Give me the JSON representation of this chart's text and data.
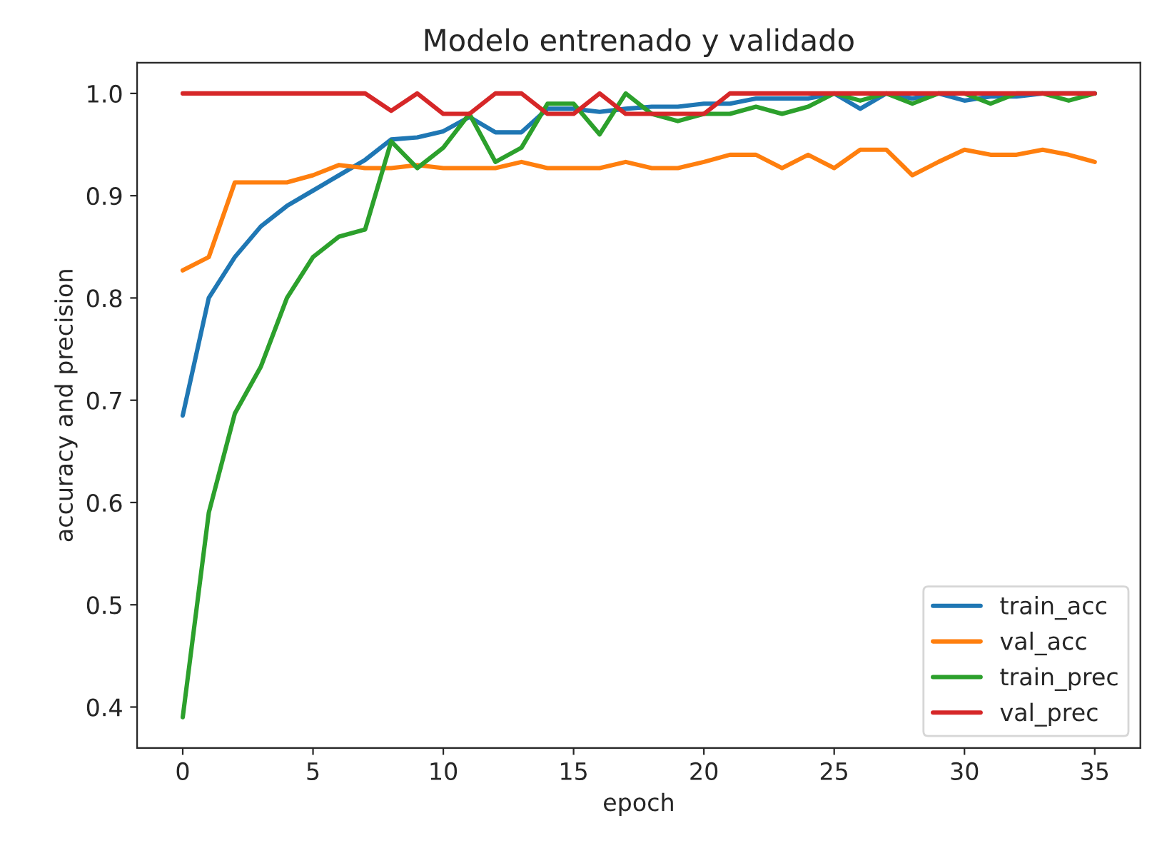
{
  "chart_data": {
    "type": "line",
    "title": "Modelo entrenado y validado",
    "xlabel": "epoch",
    "ylabel": "accuracy and precision",
    "x": [
      0,
      1,
      2,
      3,
      4,
      5,
      6,
      7,
      8,
      9,
      10,
      11,
      12,
      13,
      14,
      15,
      16,
      17,
      18,
      19,
      20,
      21,
      22,
      23,
      24,
      25,
      26,
      27,
      28,
      29,
      30,
      31,
      32,
      33,
      34,
      35
    ],
    "series": [
      {
        "name": "train_acc",
        "color": "#1f77b4",
        "values": [
          0.685,
          0.8,
          0.84,
          0.87,
          0.89,
          0.905,
          0.92,
          0.935,
          0.955,
          0.957,
          0.963,
          0.977,
          0.962,
          0.962,
          0.985,
          0.985,
          0.982,
          0.985,
          0.987,
          0.987,
          0.99,
          0.99,
          0.995,
          0.995,
          0.995,
          1.0,
          0.985,
          1.0,
          0.995,
          1.0,
          0.993,
          0.997,
          0.997,
          1.0,
          1.0,
          1.0
        ]
      },
      {
        "name": "val_acc",
        "color": "#ff7f0e",
        "values": [
          0.827,
          0.84,
          0.913,
          0.913,
          0.913,
          0.92,
          0.93,
          0.927,
          0.927,
          0.93,
          0.927,
          0.927,
          0.927,
          0.933,
          0.927,
          0.927,
          0.927,
          0.933,
          0.927,
          0.927,
          0.933,
          0.94,
          0.94,
          0.927,
          0.94,
          0.927,
          0.945,
          0.945,
          0.92,
          0.933,
          0.945,
          0.94,
          0.94,
          0.945,
          0.94,
          0.933
        ]
      },
      {
        "name": "train_prec",
        "color": "#2ca02c",
        "values": [
          0.39,
          0.59,
          0.687,
          0.733,
          0.8,
          0.84,
          0.86,
          0.867,
          0.953,
          0.927,
          0.947,
          0.98,
          0.933,
          0.947,
          0.99,
          0.99,
          0.96,
          1.0,
          0.98,
          0.973,
          0.98,
          0.98,
          0.987,
          0.98,
          0.987,
          1.0,
          0.993,
          1.0,
          0.99,
          1.0,
          1.0,
          0.99,
          1.0,
          1.0,
          0.993,
          1.0
        ]
      },
      {
        "name": "val_prec",
        "color": "#d62728",
        "values": [
          1.0,
          1.0,
          1.0,
          1.0,
          1.0,
          1.0,
          1.0,
          1.0,
          0.983,
          1.0,
          0.98,
          0.98,
          1.0,
          1.0,
          0.98,
          0.98,
          1.0,
          0.98,
          0.98,
          0.98,
          0.98,
          1.0,
          1.0,
          1.0,
          1.0,
          1.0,
          1.0,
          1.0,
          1.0,
          1.0,
          1.0,
          1.0,
          1.0,
          1.0,
          1.0,
          1.0
        ]
      }
    ],
    "xlim": [
      -1.75,
      36.75
    ],
    "xticks": [
      0,
      5,
      10,
      15,
      20,
      25,
      30,
      35
    ],
    "ylim": [
      0.36,
      1.03
    ],
    "yticks": [
      {
        "value": 0.4,
        "label": "0.4"
      },
      {
        "value": 0.5,
        "label": "0.5"
      },
      {
        "value": 0.6,
        "label": "0.6"
      },
      {
        "value": 0.7,
        "label": "0.7"
      },
      {
        "value": 0.8,
        "label": "0.8"
      },
      {
        "value": 0.9,
        "label": "0.9"
      },
      {
        "value": 1.0,
        "label": "1.0"
      }
    ],
    "grid": false,
    "legend": "bottom right",
    "line_style": "solid"
  }
}
